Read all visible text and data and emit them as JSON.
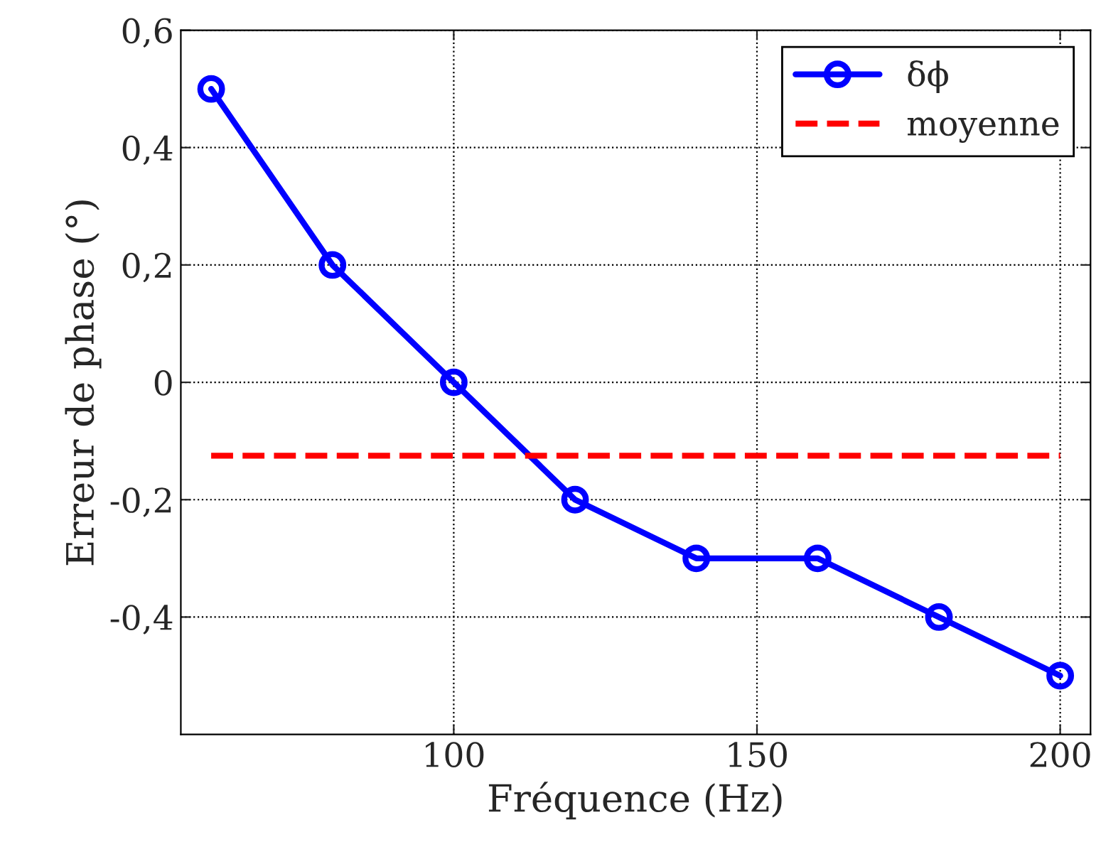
{
  "chart_data": {
    "type": "line",
    "xlabel": "Fréquence (Hz)",
    "ylabel": "Erreur de phase (°)",
    "xlim": [
      55,
      205
    ],
    "ylim": [
      -0.6,
      0.6
    ],
    "xticks": [
      100,
      150,
      200
    ],
    "yticks": [
      {
        "value": -0.4,
        "label": "-0,4"
      },
      {
        "value": -0.2,
        "label": "-0,2"
      },
      {
        "value": 0,
        "label": "0"
      },
      {
        "value": 0.2,
        "label": "0,2"
      },
      {
        "value": 0.4,
        "label": "0,4"
      },
      {
        "value": 0.6,
        "label": "0,6"
      }
    ],
    "grid": true,
    "legend": "top right",
    "series": [
      {
        "name": "δϕ",
        "color": "#0000ff",
        "marker": "circle",
        "line_style": "solid",
        "x": [
          60,
          80,
          100,
          120,
          140,
          160,
          180,
          200
        ],
        "values": [
          0.5,
          0.2,
          0,
          -0.2,
          -0.3,
          -0.3,
          -0.4,
          -0.5
        ]
      },
      {
        "name": "moyenne",
        "color": "#ff0000",
        "marker": "none",
        "line_style": "dashed",
        "x": [
          60,
          200
        ],
        "values": [
          -0.125,
          -0.125
        ]
      }
    ]
  }
}
